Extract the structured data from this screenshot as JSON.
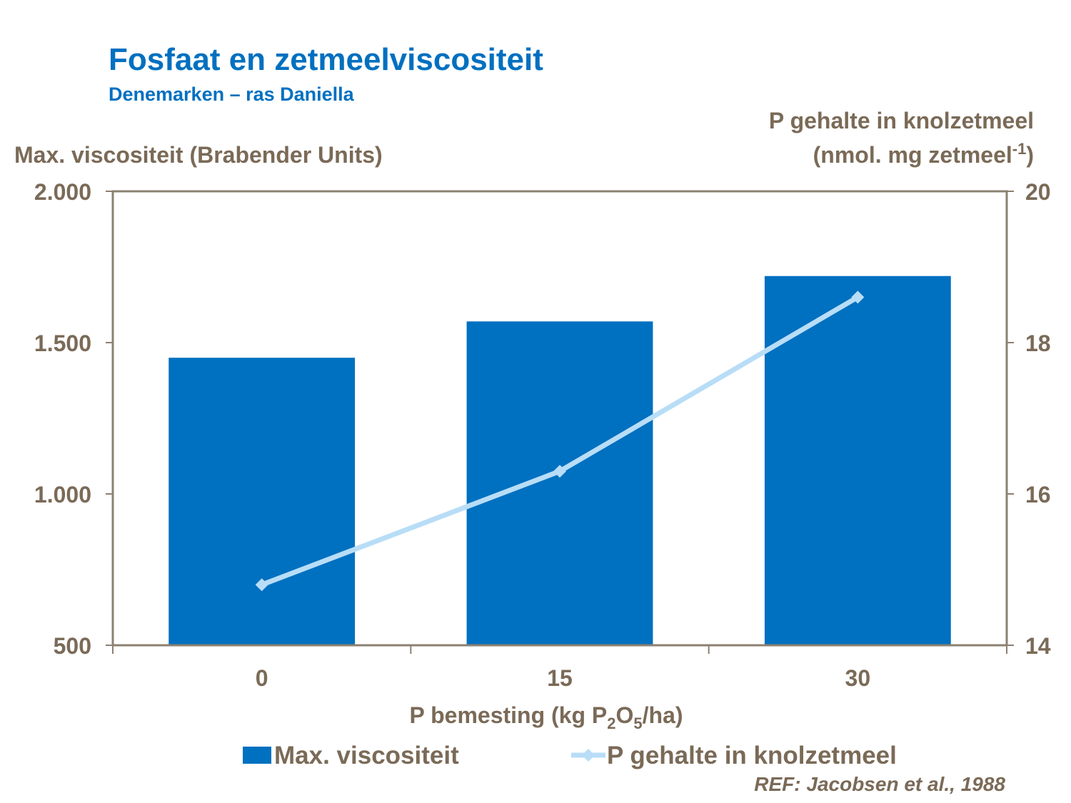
{
  "chart_data": {
    "type": "bar_line",
    "title": "Fosfaat en zetmeelviscositeit",
    "subtitle": "Denemarken – ras Daniella",
    "y_label": "Max. viscositeit (Brabender Units)",
    "y2_label": [
      "P gehalte in knolzetmeel",
      [
        "(nmol. mg zetmeel",
        "-1",
        ")"
      ]
    ],
    "x_label": [
      "P bemesting (kg P",
      "2",
      "O",
      "5",
      "/ha)"
    ],
    "note": "REF: Jacobsen et al., 1988",
    "categories": [
      "0",
      "15",
      "30"
    ],
    "series": [
      {
        "name": "Max. viscositeit",
        "type": "bar",
        "color": "#0070c0",
        "values": [
          1450,
          1570,
          1720
        ]
      },
      {
        "name": "P gehalte in knolzetmeel",
        "type": "line",
        "axis": "y2",
        "color": "#b8ddf7",
        "values": [
          14.8,
          16.3,
          18.6
        ]
      }
    ],
    "ylim": [
      500,
      2000
    ],
    "yticks": [
      500,
      {
        "value": 1000,
        "label": "1.000"
      },
      {
        "value": 1500,
        "label": "1.500"
      },
      {
        "value": 2000,
        "label": "2.000"
      }
    ],
    "y2lim": [
      14,
      20
    ],
    "y2ticks": [
      14,
      16,
      18,
      20
    ],
    "grid": false
  }
}
